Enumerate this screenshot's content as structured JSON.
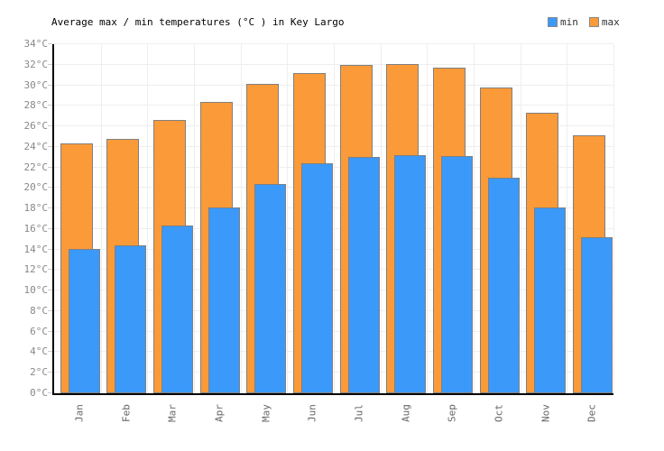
{
  "header": {
    "title": "Average max / min temperatures (°C ) in Key Largo",
    "legend": [
      {
        "label": "min",
        "color": "#3B99FA"
      },
      {
        "label": "max",
        "color": "#FB9A38"
      }
    ]
  },
  "chart_data": {
    "type": "bar",
    "title": "Average max / min temperatures (°C ) in Key Largo",
    "categories": [
      "Jan",
      "Feb",
      "Mar",
      "Apr",
      "May",
      "Jun",
      "Jul",
      "Aug",
      "Sep",
      "Oct",
      "Nov",
      "Dec"
    ],
    "series": [
      {
        "name": "max",
        "color": "#FB9A38",
        "values": [
          24.3,
          24.8,
          26.6,
          28.4,
          30.1,
          31.2,
          32.0,
          32.1,
          31.7,
          29.8,
          27.3,
          25.1
        ]
      },
      {
        "name": "min",
        "color": "#3B99FA",
        "values": [
          14.1,
          14.4,
          16.3,
          18.1,
          20.4,
          22.4,
          23.0,
          23.2,
          23.1,
          21.0,
          18.1,
          15.2
        ]
      }
    ],
    "unit": "°C",
    "ylim": [
      0,
      34
    ],
    "ytick_step": 2,
    "ytick_labels": [
      "0°C",
      "2°C",
      "4°C",
      "6°C",
      "8°C",
      "10°C",
      "12°C",
      "14°C",
      "16°C",
      "18°C",
      "20°C",
      "22°C",
      "24°C",
      "26°C",
      "28°C",
      "30°C",
      "32°C",
      "34°C"
    ],
    "grid": true,
    "legend_position": "top-right",
    "bar_border_color": "#808080",
    "axis_color": "#000000",
    "grid_color": "#eeeeee"
  }
}
